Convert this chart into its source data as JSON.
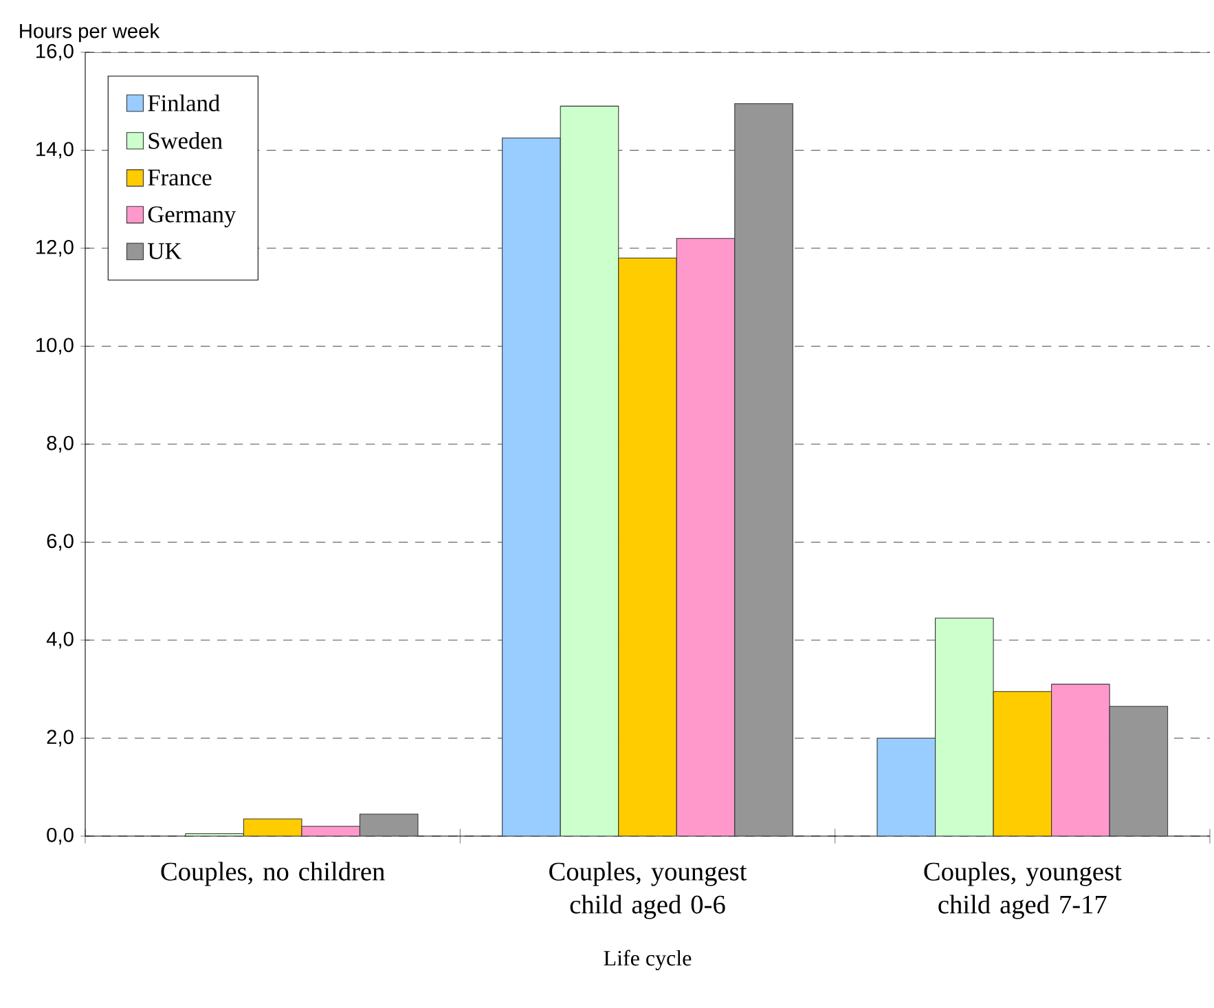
{
  "chart_data": {
    "type": "bar",
    "ylabel": "Hours per week",
    "xlabel": "Life cycle",
    "categories": [
      "Couples, no children",
      "Couples, youngest child aged 0-6",
      "Couples, youngest child aged 7-17"
    ],
    "series": [
      {
        "name": "Finland",
        "color": "#99ccff",
        "values": [
          null,
          14.25,
          2.0
        ]
      },
      {
        "name": "Sweden",
        "color": "#ccffcc",
        "values": [
          0.05,
          14.9,
          4.45
        ]
      },
      {
        "name": "France",
        "color": "#ffcc00",
        "values": [
          0.35,
          11.8,
          2.95
        ]
      },
      {
        "name": "Germany",
        "color": "#ff99cc",
        "values": [
          0.2,
          12.2,
          3.1
        ]
      },
      {
        "name": "UK",
        "color": "#969696",
        "values": [
          0.45,
          14.95,
          2.65
        ]
      }
    ],
    "ylim": [
      0,
      16
    ],
    "yticks": [
      {
        "value": 0,
        "label": "0,0"
      },
      {
        "value": 2,
        "label": "2,0"
      },
      {
        "value": 4,
        "label": "4,0"
      },
      {
        "value": 6,
        "label": "6,0"
      },
      {
        "value": 8,
        "label": "8,0"
      },
      {
        "value": 10,
        "label": "10,0"
      },
      {
        "value": 12,
        "label": "12,0"
      },
      {
        "value": 14,
        "label": "14,0"
      },
      {
        "value": 16,
        "label": "16,0"
      }
    ],
    "grid": "y",
    "legend": "top left"
  }
}
